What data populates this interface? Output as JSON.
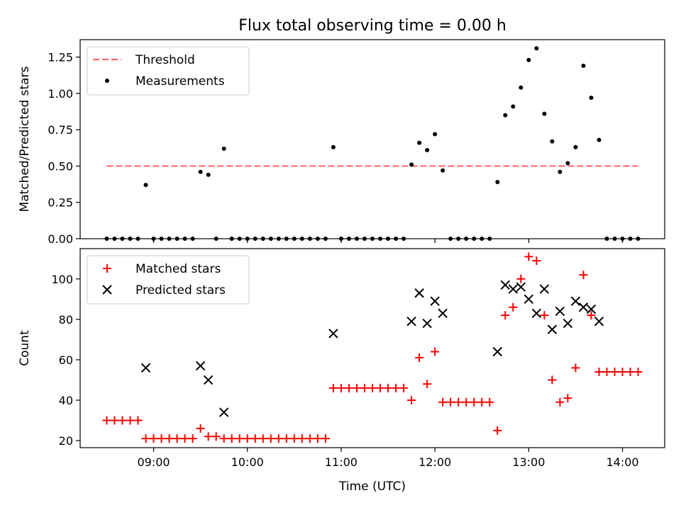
{
  "figure": {
    "title": "Flux total observing time = 0.00 h"
  },
  "chart_data": [
    {
      "type": "scatter",
      "title": "Flux total observing time = 0.00 h",
      "xlabel": "",
      "ylabel": "Matched/Predicted stars",
      "xlim": [
        "08:13",
        "14:27"
      ],
      "ylim": [
        0,
        1.37
      ],
      "yticks": [
        0.0,
        0.25,
        0.5,
        0.75,
        1.0,
        1.25
      ],
      "ytick_labels": [
        "0.00",
        "0.25",
        "0.50",
        "0.75",
        "1.00",
        "1.25"
      ],
      "xticks": [
        "09:00",
        "10:00",
        "11:00",
        "12:00",
        "13:00",
        "14:00"
      ],
      "show_xtick_labels": false,
      "grid": false,
      "legend_position": "top-left",
      "threshold": {
        "name": "Threshold",
        "value": 0.5,
        "x_range": [
          "08:30",
          "14:10"
        ],
        "color": "#ff6666",
        "style": "dashed"
      },
      "series": [
        {
          "name": "Measurements",
          "color": "#000000",
          "marker": "dot",
          "points": [
            [
              "08:30",
              0
            ],
            [
              "08:35",
              0
            ],
            [
              "08:40",
              0
            ],
            [
              "08:45",
              0
            ],
            [
              "08:50",
              0
            ],
            [
              "08:55",
              0.37
            ],
            [
              "09:00",
              0
            ],
            [
              "09:05",
              0
            ],
            [
              "09:10",
              0
            ],
            [
              "09:15",
              0
            ],
            [
              "09:20",
              0
            ],
            [
              "09:25",
              0
            ],
            [
              "09:30",
              0.46
            ],
            [
              "09:35",
              0.44
            ],
            [
              "09:40",
              0
            ],
            [
              "09:45",
              0.62
            ],
            [
              "09:50",
              0
            ],
            [
              "09:55",
              0
            ],
            [
              "10:00",
              0
            ],
            [
              "10:05",
              0
            ],
            [
              "10:10",
              0
            ],
            [
              "10:15",
              0
            ],
            [
              "10:20",
              0
            ],
            [
              "10:25",
              0
            ],
            [
              "10:30",
              0
            ],
            [
              "10:35",
              0
            ],
            [
              "10:40",
              0
            ],
            [
              "10:45",
              0
            ],
            [
              "10:50",
              0
            ],
            [
              "10:55",
              0.63
            ],
            [
              "11:00",
              0
            ],
            [
              "11:05",
              0
            ],
            [
              "11:10",
              0
            ],
            [
              "11:15",
              0
            ],
            [
              "11:20",
              0
            ],
            [
              "11:25",
              0
            ],
            [
              "11:30",
              0
            ],
            [
              "11:35",
              0
            ],
            [
              "11:40",
              0
            ],
            [
              "11:45",
              0.51
            ],
            [
              "11:50",
              0.66
            ],
            [
              "11:55",
              0.61
            ],
            [
              "12:00",
              0.72
            ],
            [
              "12:05",
              0.47
            ],
            [
              "12:10",
              0
            ],
            [
              "12:15",
              0
            ],
            [
              "12:20",
              0
            ],
            [
              "12:25",
              0
            ],
            [
              "12:30",
              0
            ],
            [
              "12:35",
              0
            ],
            [
              "12:40",
              0.39
            ],
            [
              "12:45",
              0.85
            ],
            [
              "12:50",
              0.91
            ],
            [
              "12:55",
              1.04
            ],
            [
              "13:00",
              1.23
            ],
            [
              "13:05",
              1.31
            ],
            [
              "13:10",
              0.86
            ],
            [
              "13:15",
              0.67
            ],
            [
              "13:20",
              0.46
            ],
            [
              "13:25",
              0.52
            ],
            [
              "13:30",
              0.63
            ],
            [
              "13:35",
              1.19
            ],
            [
              "13:40",
              0.97
            ],
            [
              "13:45",
              0.68
            ],
            [
              "13:50",
              0
            ],
            [
              "13:55",
              0
            ],
            [
              "14:00",
              0
            ],
            [
              "14:05",
              0
            ],
            [
              "14:10",
              0
            ]
          ]
        }
      ]
    },
    {
      "type": "scatter",
      "title": "",
      "xlabel": "Time (UTC)",
      "ylabel": "Count",
      "xlim": [
        "08:13",
        "14:27"
      ],
      "ylim": [
        16.5,
        115
      ],
      "yticks": [
        20,
        40,
        60,
        80,
        100
      ],
      "ytick_labels": [
        "20",
        "40",
        "60",
        "80",
        "100"
      ],
      "xticks": [
        "09:00",
        "10:00",
        "11:00",
        "12:00",
        "13:00",
        "14:00"
      ],
      "xtick_labels": [
        "09:00",
        "10:00",
        "11:00",
        "12:00",
        "13:00",
        "14:00"
      ],
      "grid": false,
      "legend_position": "top-left",
      "series": [
        {
          "name": "Matched stars",
          "color": "#ff0000",
          "marker": "plus",
          "points": [
            [
              "08:30",
              30
            ],
            [
              "08:35",
              30
            ],
            [
              "08:40",
              30
            ],
            [
              "08:45",
              30
            ],
            [
              "08:50",
              30
            ],
            [
              "08:55",
              21
            ],
            [
              "09:00",
              21
            ],
            [
              "09:05",
              21
            ],
            [
              "09:10",
              21
            ],
            [
              "09:15",
              21
            ],
            [
              "09:20",
              21
            ],
            [
              "09:25",
              21
            ],
            [
              "09:30",
              26
            ],
            [
              "09:35",
              22
            ],
            [
              "09:40",
              22
            ],
            [
              "09:45",
              21
            ],
            [
              "09:50",
              21
            ],
            [
              "09:55",
              21
            ],
            [
              "10:00",
              21
            ],
            [
              "10:05",
              21
            ],
            [
              "10:10",
              21
            ],
            [
              "10:15",
              21
            ],
            [
              "10:20",
              21
            ],
            [
              "10:25",
              21
            ],
            [
              "10:30",
              21
            ],
            [
              "10:35",
              21
            ],
            [
              "10:40",
              21
            ],
            [
              "10:45",
              21
            ],
            [
              "10:50",
              21
            ],
            [
              "10:55",
              46
            ],
            [
              "11:00",
              46
            ],
            [
              "11:05",
              46
            ],
            [
              "11:10",
              46
            ],
            [
              "11:15",
              46
            ],
            [
              "11:20",
              46
            ],
            [
              "11:25",
              46
            ],
            [
              "11:30",
              46
            ],
            [
              "11:35",
              46
            ],
            [
              "11:40",
              46
            ],
            [
              "11:45",
              40
            ],
            [
              "11:50",
              61
            ],
            [
              "11:55",
              48
            ],
            [
              "12:00",
              64
            ],
            [
              "12:05",
              39
            ],
            [
              "12:10",
              39
            ],
            [
              "12:15",
              39
            ],
            [
              "12:20",
              39
            ],
            [
              "12:25",
              39
            ],
            [
              "12:30",
              39
            ],
            [
              "12:35",
              39
            ],
            [
              "12:40",
              25
            ],
            [
              "12:45",
              82
            ],
            [
              "12:50",
              86
            ],
            [
              "12:55",
              100
            ],
            [
              "13:00",
              111
            ],
            [
              "13:05",
              109
            ],
            [
              "13:10",
              82
            ],
            [
              "13:15",
              50
            ],
            [
              "13:20",
              39
            ],
            [
              "13:25",
              41
            ],
            [
              "13:30",
              56
            ],
            [
              "13:35",
              102
            ],
            [
              "13:40",
              82
            ],
            [
              "13:45",
              54
            ],
            [
              "13:50",
              54
            ],
            [
              "13:55",
              54
            ],
            [
              "14:00",
              54
            ],
            [
              "14:05",
              54
            ],
            [
              "14:10",
              54
            ]
          ]
        },
        {
          "name": "Predicted stars",
          "color": "#000000",
          "marker": "x",
          "points": [
            [
              "08:55",
              56
            ],
            [
              "09:30",
              57
            ],
            [
              "09:35",
              50
            ],
            [
              "09:45",
              34
            ],
            [
              "10:55",
              73
            ],
            [
              "11:45",
              79
            ],
            [
              "11:50",
              93
            ],
            [
              "11:55",
              78
            ],
            [
              "12:00",
              89
            ],
            [
              "12:05",
              83
            ],
            [
              "12:40",
              64
            ],
            [
              "12:45",
              97
            ],
            [
              "12:50",
              95
            ],
            [
              "12:55",
              96
            ],
            [
              "13:00",
              90
            ],
            [
              "13:05",
              83
            ],
            [
              "13:10",
              95
            ],
            [
              "13:15",
              75
            ],
            [
              "13:20",
              84
            ],
            [
              "13:25",
              78
            ],
            [
              "13:30",
              89
            ],
            [
              "13:35",
              86
            ],
            [
              "13:40",
              85
            ],
            [
              "13:45",
              79
            ]
          ]
        }
      ]
    }
  ]
}
